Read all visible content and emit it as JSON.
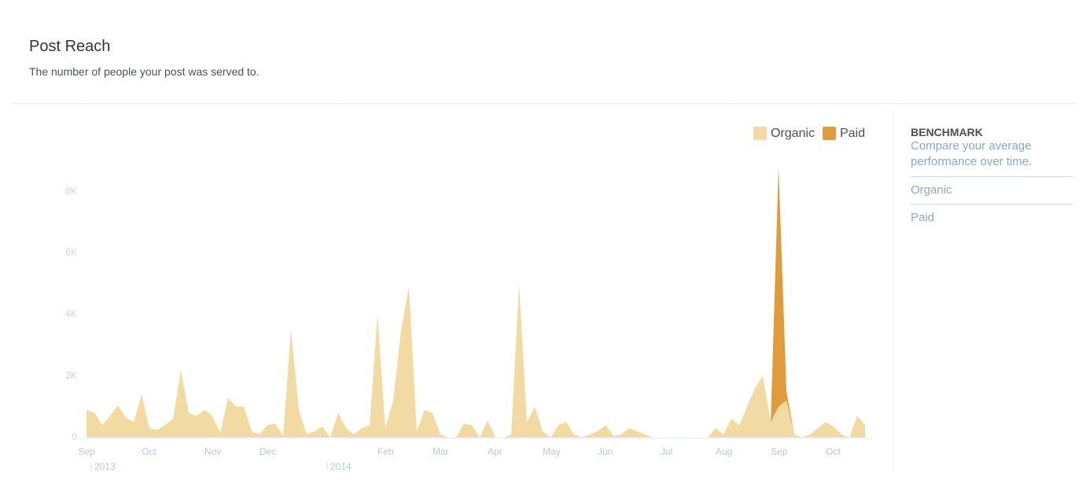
{
  "header": {
    "title": "Post Reach",
    "subtitle": "The number of people your post was served to."
  },
  "chart_data": {
    "type": "stacked_area",
    "categories": [
      "Sep",
      null,
      null,
      null,
      null,
      null,
      null,
      "Oct",
      null,
      null,
      null,
      null,
      null,
      null,
      null,
      "Nov",
      null,
      null,
      null,
      null,
      null,
      null,
      "Dec",
      null,
      null,
      null,
      null,
      null,
      null,
      null,
      null,
      null,
      null,
      null,
      null,
      null,
      null,
      "Feb",
      null,
      null,
      null,
      null,
      null,
      null,
      "Mar",
      null,
      null,
      null,
      null,
      null,
      null,
      "Apr",
      null,
      null,
      null,
      null,
      null,
      null,
      "May",
      null,
      null,
      null,
      null,
      null,
      null,
      "Jun",
      null,
      null,
      null,
      null,
      null,
      null,
      null,
      "Jul",
      null,
      null,
      null,
      null,
      null,
      null,
      "Aug",
      null,
      null,
      null,
      null,
      null,
      null,
      "Sep",
      null,
      null,
      null,
      null,
      null,
      null,
      "Oct",
      null,
      null,
      null,
      null,
      null
    ],
    "category_years": [
      "2013",
      null,
      null,
      null,
      null,
      null,
      null,
      null,
      null,
      null,
      null,
      null,
      null,
      null,
      null,
      null,
      null,
      null,
      null,
      null,
      null,
      null,
      null,
      null,
      null,
      null,
      null,
      null,
      null,
      null,
      "2014",
      null,
      null,
      null,
      null,
      null,
      null,
      null,
      null,
      null,
      null,
      null,
      null,
      null,
      null,
      null,
      null,
      null,
      null,
      null,
      null,
      null,
      null,
      null,
      null,
      null,
      null,
      null,
      null,
      null,
      null,
      null,
      null,
      null,
      null,
      null,
      null,
      null,
      null,
      null,
      null,
      null,
      null,
      null,
      null,
      null,
      null,
      null,
      null,
      null,
      null,
      null,
      null,
      null,
      null,
      null,
      null,
      null,
      null,
      null,
      null,
      null,
      null,
      null,
      null,
      null,
      null,
      null,
      null,
      null
    ],
    "series": [
      {
        "name": "Organic",
        "color": "#f1dba3",
        "values": [
          900,
          800,
          400,
          700,
          1050,
          650,
          500,
          1400,
          300,
          250,
          400,
          600,
          2200,
          800,
          700,
          900,
          700,
          150,
          1300,
          1000,
          1000,
          200,
          100,
          400,
          450,
          50,
          3500,
          900,
          100,
          200,
          350,
          0,
          800,
          300,
          100,
          300,
          400,
          4000,
          300,
          1200,
          3500,
          4900,
          200,
          900,
          800,
          100,
          0,
          0,
          450,
          400,
          0,
          550,
          0,
          0,
          100,
          5000,
          500,
          1000,
          200,
          0,
          400,
          500,
          100,
          0,
          100,
          200,
          400,
          50,
          100,
          300,
          200,
          100,
          0,
          0,
          0,
          0,
          0,
          0,
          0,
          0,
          300,
          100,
          600,
          400,
          1000,
          1600,
          2000,
          500,
          1000,
          1200,
          100,
          0,
          100,
          300,
          500,
          350,
          100,
          0,
          700,
          400
        ]
      },
      {
        "name": "Paid",
        "color": "#e09b3d",
        "values": [
          0,
          0,
          0,
          0,
          0,
          0,
          0,
          0,
          0,
          0,
          0,
          0,
          0,
          0,
          0,
          0,
          0,
          0,
          0,
          0,
          0,
          0,
          0,
          0,
          0,
          0,
          0,
          0,
          0,
          0,
          0,
          0,
          0,
          0,
          0,
          0,
          0,
          0,
          0,
          0,
          0,
          0,
          0,
          0,
          0,
          0,
          0,
          0,
          0,
          0,
          0,
          0,
          0,
          0,
          0,
          0,
          0,
          0,
          0,
          0,
          0,
          0,
          0,
          0,
          0,
          0,
          0,
          0,
          0,
          0,
          0,
          0,
          0,
          0,
          0,
          0,
          0,
          0,
          0,
          0,
          0,
          0,
          0,
          0,
          0,
          0,
          0,
          0,
          7800,
          300,
          0,
          0,
          0,
          0,
          0,
          0,
          0,
          0,
          0,
          0
        ]
      }
    ],
    "ylim": [
      0,
      8800
    ],
    "yticks": [
      0,
      {
        "value": 2000,
        "label": "2K"
      },
      {
        "value": 4000,
        "label": "4K"
      },
      {
        "value": 6000,
        "label": "6K"
      },
      {
        "value": 8000,
        "label": "8K"
      }
    ],
    "legend": "top-right"
  },
  "sidebar": {
    "title": "BENCHMARK",
    "description": "Compare your average performance over time.",
    "options": [
      "Organic",
      "Paid"
    ]
  }
}
